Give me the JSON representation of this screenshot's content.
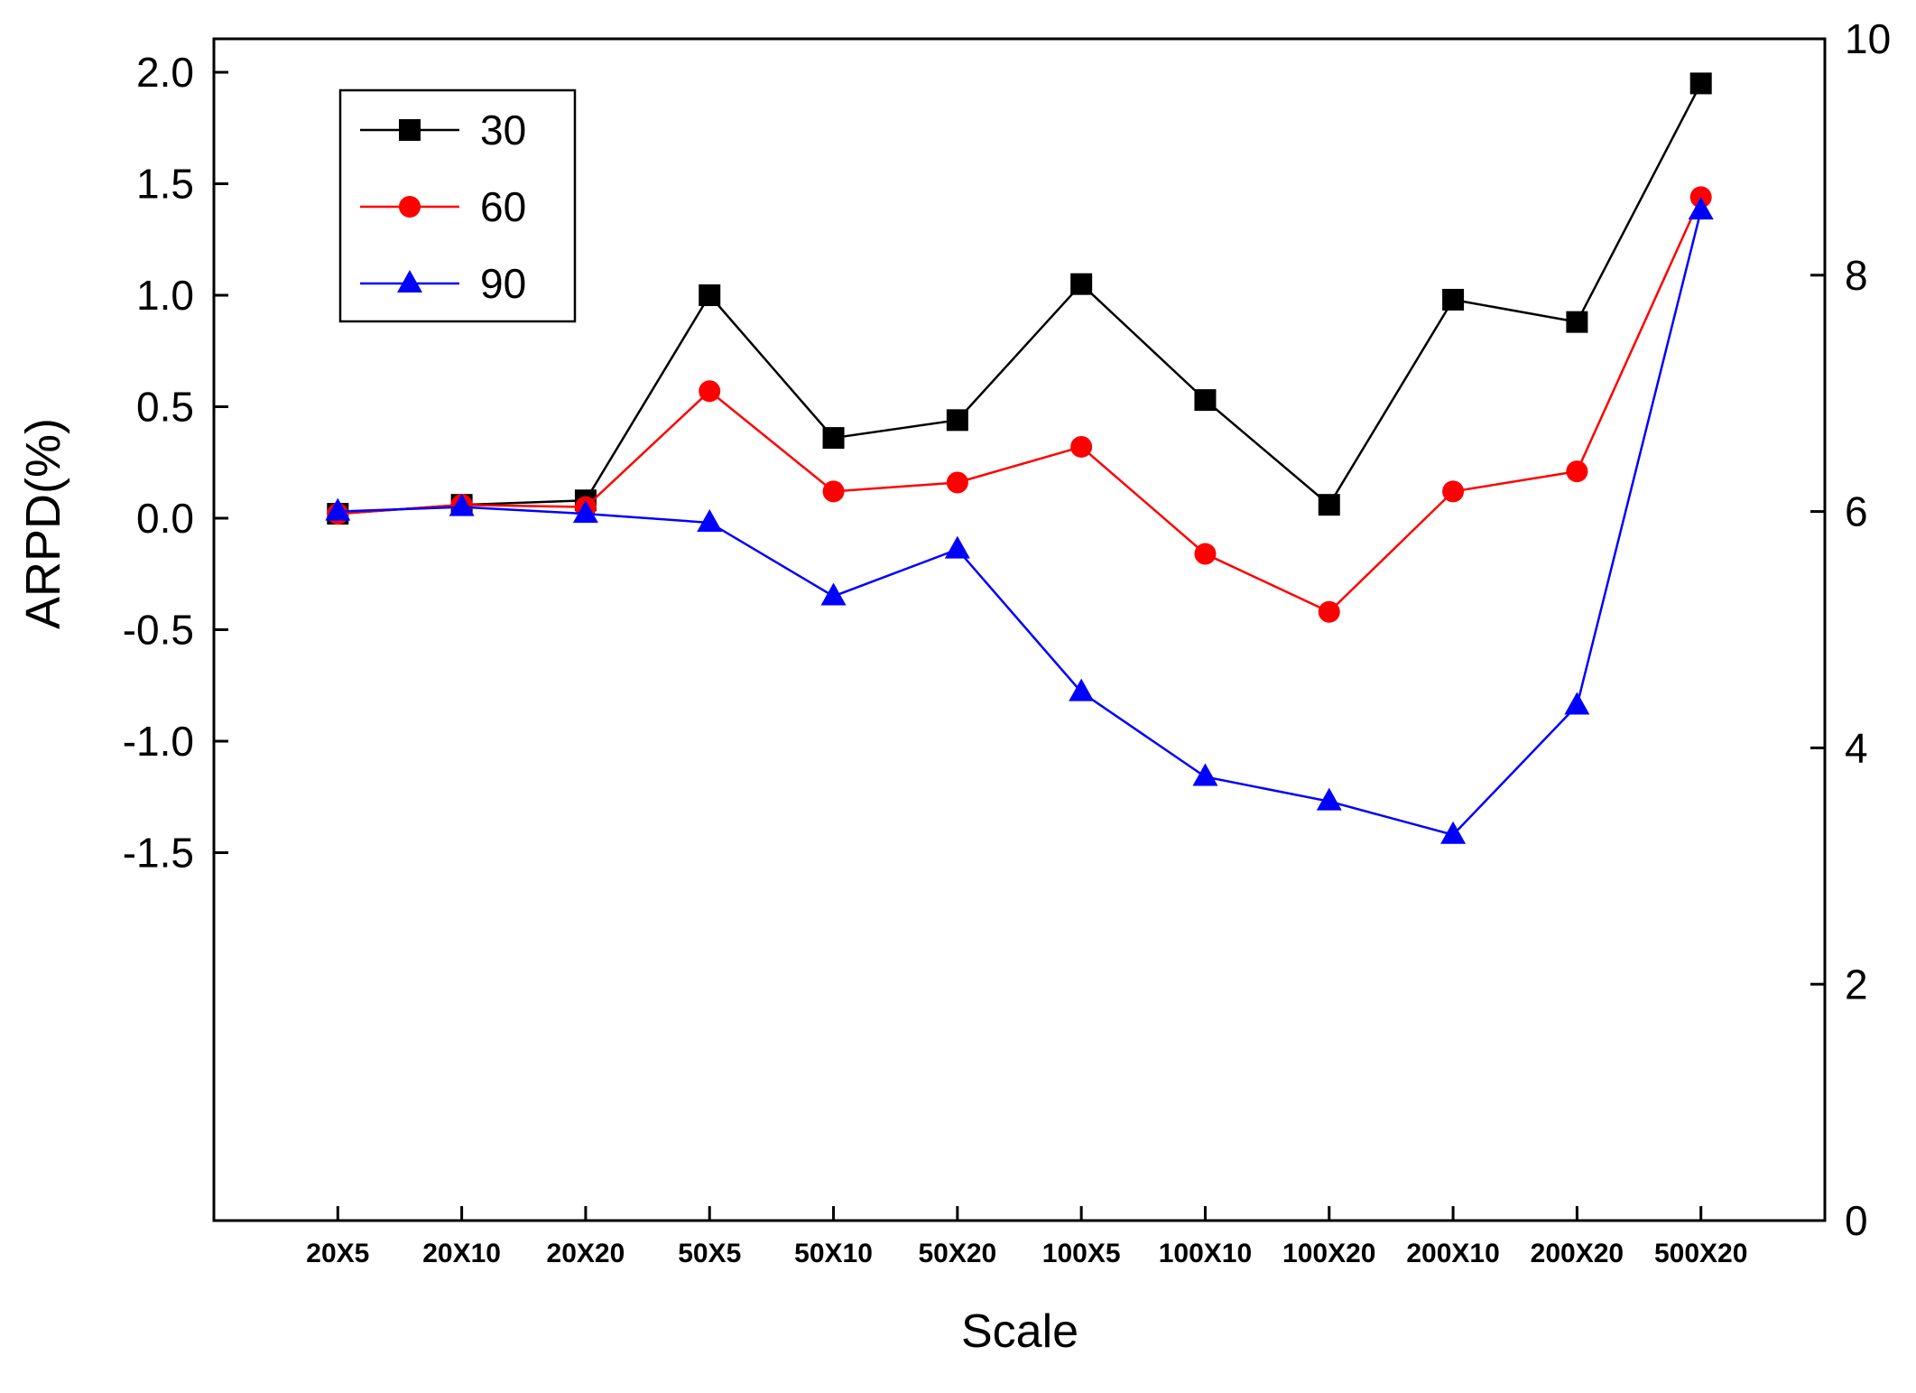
{
  "chart_data": {
    "type": "line",
    "title": "",
    "xlabel": "Scale",
    "ylabel": "ARPD(%)",
    "categories": [
      "20X5",
      "20X10",
      "20X20",
      "50X5",
      "50X10",
      "50X20",
      "100X5",
      "100X10",
      "100X20",
      "200X10",
      "200X20",
      "500X20"
    ],
    "series": [
      {
        "name": "30",
        "color": "#000000",
        "marker": "square",
        "axis": "left",
        "values": [
          0.02,
          0.06,
          0.08,
          1.0,
          0.36,
          0.44,
          1.05,
          0.53,
          0.06,
          0.98,
          0.88,
          1.95
        ]
      },
      {
        "name": "60",
        "color": "#ff0000",
        "marker": "circle",
        "axis": "left",
        "values": [
          0.02,
          0.06,
          0.05,
          0.57,
          0.12,
          0.16,
          0.32,
          -0.16,
          -0.42,
          0.12,
          0.21,
          1.44
        ]
      },
      {
        "name": "90",
        "color": "#0000ff",
        "marker": "triangle",
        "axis": "left",
        "values": [
          0.03,
          0.05,
          0.02,
          -0.02,
          -0.35,
          -0.14,
          -0.78,
          -1.16,
          -1.27,
          -1.42,
          -0.84,
          1.38
        ]
      }
    ],
    "left_axis": {
      "label": "ARPD(%)",
      "range": [
        -3.15,
        2.15
      ],
      "tick_labels": [
        "2.0",
        "1.5",
        "1.0",
        "0.5",
        "0.0",
        "-0.5",
        "-1.0",
        "-1.5"
      ]
    },
    "right_axis": {
      "label": "",
      "range": [
        0,
        10
      ],
      "tick_labels": [
        "10",
        "8",
        "6",
        "4",
        "2",
        "0"
      ]
    },
    "legend": {
      "position": "top-left",
      "entries": [
        "30",
        "60",
        "90"
      ]
    },
    "grid": false
  }
}
